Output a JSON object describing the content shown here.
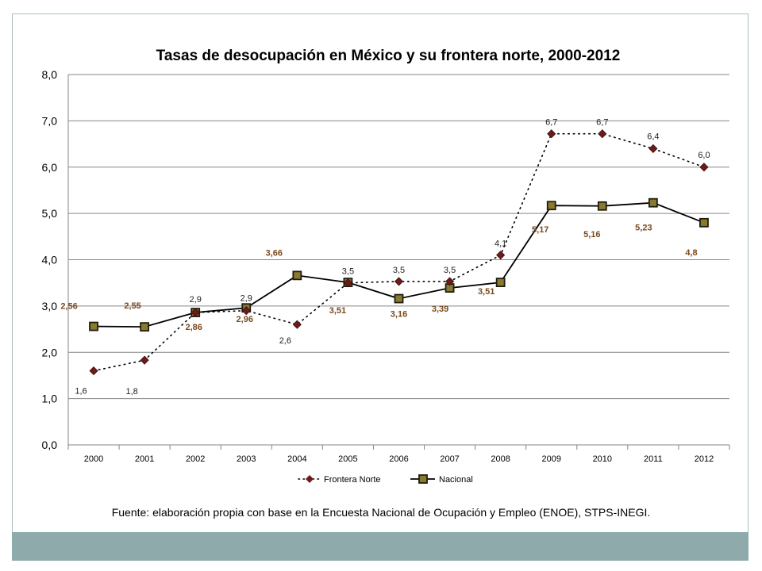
{
  "colors": {
    "frame_border": "#a9bdbd",
    "bottom_band": "#8eaaaa",
    "frontera_marker": "#6e1a1a",
    "nacional_marker_fill": "#8a7a2e",
    "nacional_marker_border": "#1e1e10",
    "nacional_label": "#7a4a1e",
    "frontera_label": "#222222",
    "gridline": "#868686"
  },
  "source_note": "Fuente: elaboración propia con base en la Encuesta Nacional de Ocupación y Empleo (ENOE), STPS-INEGI.",
  "chart_data": {
    "type": "line",
    "title": "Tasas de desocupación en México y su frontera norte, 2000-2012",
    "xlabel": "",
    "ylabel": "",
    "categories": [
      "2000",
      "2001",
      "2002",
      "2003",
      "2004",
      "2005",
      "2006",
      "2007",
      "2008",
      "2009",
      "2010",
      "2011",
      "2012"
    ],
    "ylim": [
      0,
      8
    ],
    "yticks": [
      "0,0",
      "1,0",
      "2,0",
      "3,0",
      "4,0",
      "5,0",
      "6,0",
      "7,0",
      "8,0"
    ],
    "grid": true,
    "legend_position": "bottom",
    "series": [
      {
        "name": "Frontera Norte",
        "style": "dotted",
        "marker": "diamond",
        "values": [
          1.6,
          1.83,
          2.86,
          2.9,
          2.6,
          3.5,
          3.53,
          3.53,
          4.1,
          6.72,
          6.72,
          6.4,
          6.0
        ],
        "labels": [
          "1,6",
          "1,8",
          "2,9",
          "2,9",
          "2,6",
          "3,5",
          "3,5",
          "3,5",
          "4,1",
          "6,7",
          "6,7",
          "6,4",
          "6,0"
        ]
      },
      {
        "name": "Nacional",
        "style": "solid",
        "marker": "square",
        "values": [
          2.56,
          2.55,
          2.86,
          2.96,
          3.66,
          3.51,
          3.16,
          3.39,
          3.51,
          5.17,
          5.16,
          5.23,
          4.8
        ],
        "labels": [
          "2,56",
          "2,55",
          "2,86",
          "2,96",
          "3,66",
          "3,51",
          "3,16",
          "3,39",
          "3,51",
          "5,17",
          "5,16",
          "5,23",
          "4,8"
        ]
      }
    ]
  }
}
